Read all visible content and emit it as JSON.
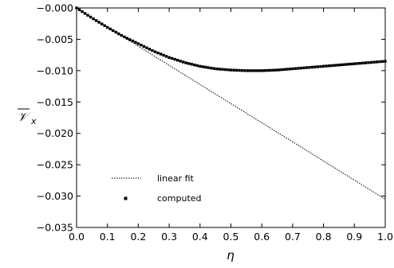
{
  "chart_data": {
    "type": "line",
    "title": "",
    "xlabel": "η",
    "ylabel_symbol": "𝒱",
    "ylabel_subscript": "x",
    "xlim": [
      0.0,
      1.0
    ],
    "ylim": [
      -0.035,
      0.0
    ],
    "grid": false,
    "legend_position": "bottom-left",
    "x_ticks": [
      {
        "value": 0.0,
        "label": "0.0"
      },
      {
        "value": 0.1,
        "label": "0.1"
      },
      {
        "value": 0.2,
        "label": "0.2"
      },
      {
        "value": 0.3,
        "label": "0.3"
      },
      {
        "value": 0.4,
        "label": "0.4"
      },
      {
        "value": 0.5,
        "label": "0.5"
      },
      {
        "value": 0.6,
        "label": "0.6"
      },
      {
        "value": 0.7,
        "label": "0.7"
      },
      {
        "value": 0.8,
        "label": "0.8"
      },
      {
        "value": 0.9,
        "label": "0.9"
      },
      {
        "value": 1.0,
        "label": "1.0"
      }
    ],
    "y_ticks": [
      {
        "value": 0.0,
        "label": "−0.000"
      },
      {
        "value": -0.005,
        "label": "−0.005"
      },
      {
        "value": -0.01,
        "label": "−0.010"
      },
      {
        "value": -0.015,
        "label": "−0.015"
      },
      {
        "value": -0.02,
        "label": "−0.020"
      },
      {
        "value": -0.025,
        "label": "−0.025"
      },
      {
        "value": -0.03,
        "label": "−0.030"
      },
      {
        "value": -0.035,
        "label": "−0.035"
      }
    ],
    "series": [
      {
        "name": "linear fit",
        "style": "dotted-line",
        "x": [
          0.0,
          1.0
        ],
        "y": [
          0.0,
          -0.0305
        ]
      },
      {
        "name": "computed",
        "style": "square-markers",
        "x": [
          0.0,
          0.05,
          0.1,
          0.15,
          0.2,
          0.25,
          0.3,
          0.35,
          0.4,
          0.45,
          0.5,
          0.55,
          0.6,
          0.65,
          0.7,
          0.75,
          0.8,
          0.85,
          0.9,
          0.95,
          1.0
        ],
        "y": [
          0.0,
          -0.0016,
          -0.0031,
          -0.0045,
          -0.0057,
          -0.0069,
          -0.0079,
          -0.0087,
          -0.0093,
          -0.0097,
          -0.0099,
          -0.01,
          -0.01,
          -0.0099,
          -0.0097,
          -0.0095,
          -0.0093,
          -0.0091,
          -0.0089,
          -0.0087,
          -0.0085
        ]
      }
    ]
  },
  "colors": {
    "ink": "#000000",
    "background": "#ffffff"
  }
}
